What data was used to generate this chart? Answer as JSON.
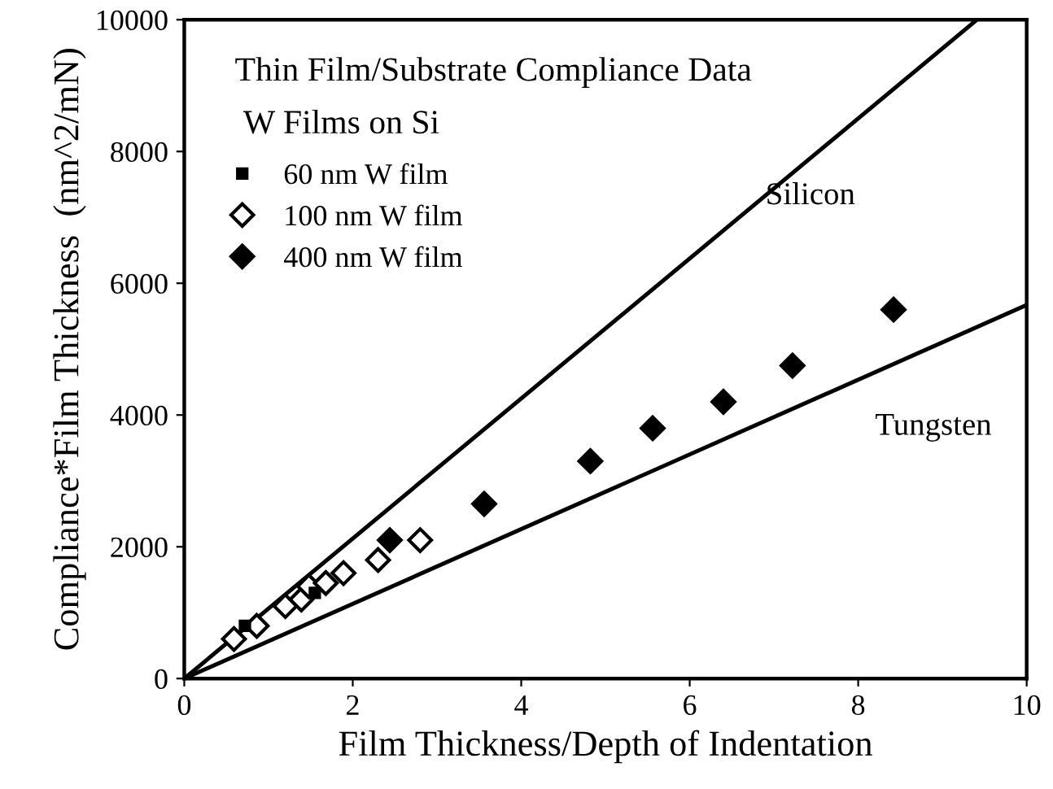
{
  "chart_data": {
    "type": "scatter",
    "title": "Thin Film/Substrate Compliance Data",
    "subtitle": "W Films on Si",
    "xlabel": "Film Thickness/Depth of Indentation",
    "ylabel": "Compliance*Film Thickness  (nm^2/mN)",
    "series": [
      {
        "name": "60 nm W film",
        "color": "#000000",
        "marker": "square",
        "x": [
          0.72,
          1.55
        ],
        "values": [
          800,
          1300
        ]
      },
      {
        "name": "100 nm W film",
        "color": "#000000",
        "marker": "diamond",
        "x": [
          0.59,
          0.86,
          1.2,
          1.39,
          1.48,
          1.68,
          1.89,
          2.3,
          2.8
        ],
        "values": [
          600,
          800,
          1100,
          1200,
          1400,
          1450,
          1600,
          1800,
          2100
        ]
      },
      {
        "name": "400 nm W film",
        "color": "#000000",
        "marker": "diamond",
        "x": [
          2.44,
          3.56,
          4.82,
          5.56,
          6.4,
          7.22,
          8.42
        ],
        "values": [
          2100,
          2650,
          3300,
          3800,
          4200,
          4750,
          5600
        ]
      },
      {
        "type": "line",
        "color": "#000000",
        "x": [
          0,
          9.41
        ],
        "values": [
          0,
          10000
        ]
      },
      {
        "type": "line",
        "color": "#000000",
        "x": [
          0,
          10
        ],
        "values": [
          0,
          5670
        ]
      }
    ],
    "annotations": [
      "Silicon",
      "Tungsten"
    ],
    "xlim": [
      0,
      10
    ],
    "ylim": [
      0,
      10000
    ],
    "xticks": [
      0,
      2,
      4,
      6,
      8,
      10
    ],
    "yticks": [
      0,
      2000,
      4000,
      6000,
      8000,
      10000
    ],
    "grid": false,
    "legend": "top left"
  }
}
